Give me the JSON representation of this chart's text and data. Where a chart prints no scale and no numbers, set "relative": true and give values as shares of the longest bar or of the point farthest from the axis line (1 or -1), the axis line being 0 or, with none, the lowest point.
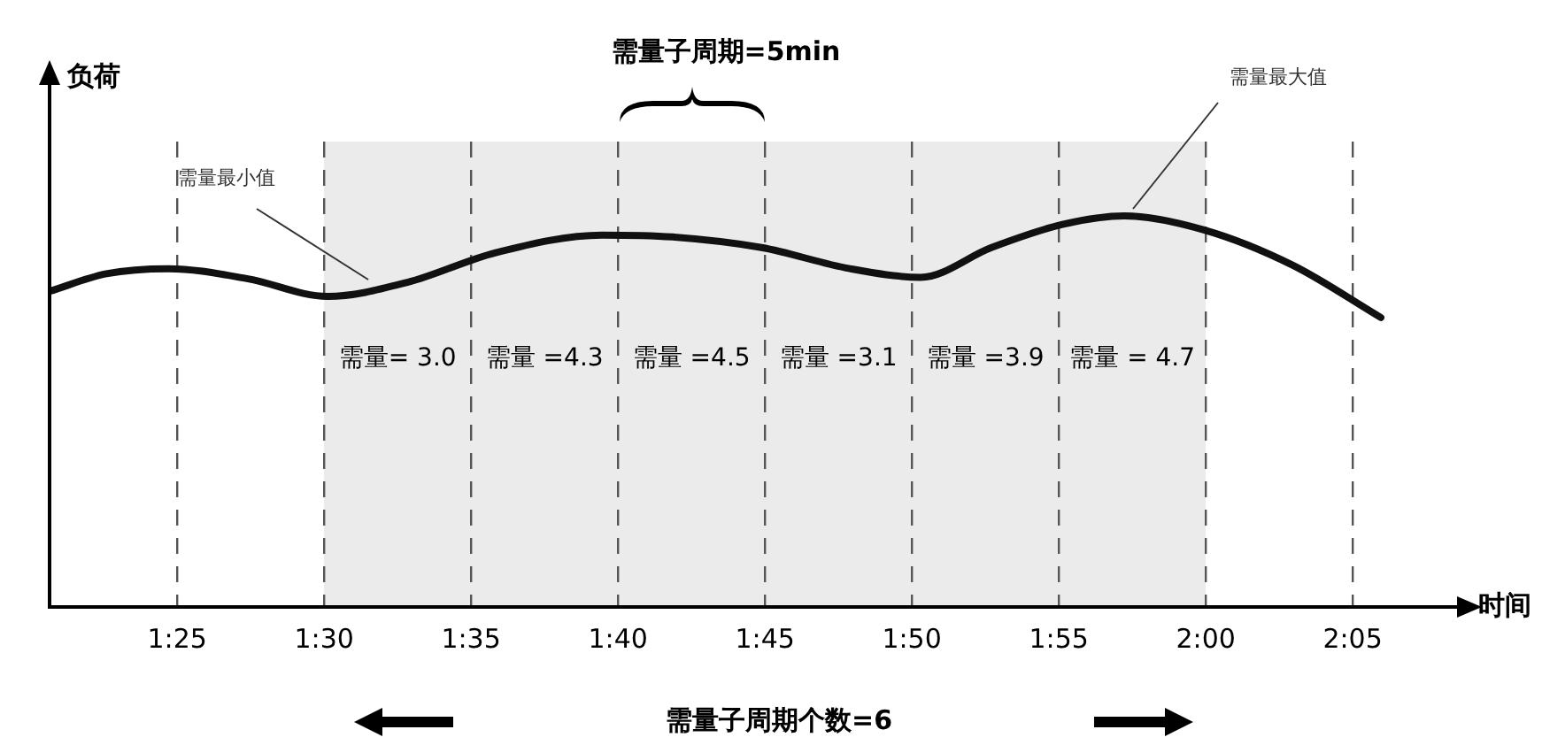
{
  "chart_data": {
    "type": "line",
    "relative": true,
    "xlabel": "时间",
    "ylabel": "负荷",
    "x": [
      1.3443,
      1.3765,
      1.4117,
      1.4568,
      1.502,
      1.5472,
      1.5973,
      1.6577,
      1.6978,
      1.748,
      1.7982,
      1.8383,
      1.8785,
      1.9187,
      1.9538,
      1.999,
      2.0492,
      2.0993
    ],
    "series": [
      {
        "color": "#111111",
        "values": [
          0.807,
          0.852,
          0.865,
          0.839,
          0.794,
          0.83,
          0.906,
          0.951,
          0.946,
          0.919,
          0.865,
          0.843,
          0.919,
          0.978,
          1,
          0.964,
          0.874,
          0.74
        ]
      }
    ],
    "xlim": [
      1.3443,
      2.1445
    ],
    "xticks": [
      {
        "value": 1.4167,
        "label": "1:25"
      },
      {
        "value": 1.5,
        "label": "1:30"
      },
      {
        "value": 1.5833,
        "label": "1:35"
      },
      {
        "value": 1.6667,
        "label": "1:40"
      },
      {
        "value": 1.75,
        "label": "1:45"
      },
      {
        "value": 1.8333,
        "label": "1:50"
      },
      {
        "value": 1.9167,
        "label": "1:55"
      },
      {
        "value": 2.0,
        "label": "2:00"
      },
      {
        "value": 2.0833,
        "label": "2:05"
      }
    ],
    "grid": "x",
    "legend": false,
    "marker": "none",
    "line_style": "solid",
    "bands": [
      {
        "axis": "x",
        "from": 1.5,
        "to": 2.0,
        "color": "#ebebeb"
      }
    ],
    "annotations": [
      "需量子周期=5min",
      "需量子周期个数=6",
      "需量最小值",
      "需量最大值",
      "需量= 3.0",
      "需量 =4.3",
      "需量 =4.5",
      "需量 =3.1",
      "需量 =3.9",
      "需量 = 4.7"
    ]
  }
}
